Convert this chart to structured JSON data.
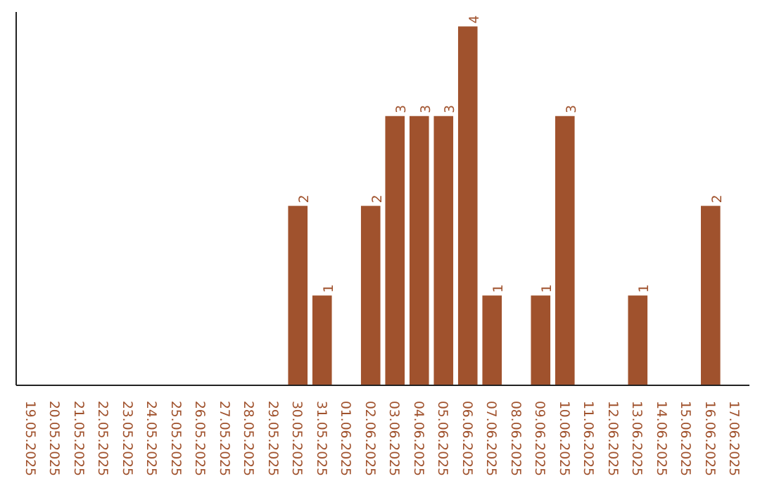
{
  "chart_data": {
    "type": "bar",
    "categories": [
      "19.05.2025",
      "20.05.2025",
      "21.05.2025",
      "22.05.2025",
      "23.05.2025",
      "24.05.2025",
      "25.05.2025",
      "26.05.2025",
      "27.05.2025",
      "28.05.2025",
      "29.05.2025",
      "30.05.2025",
      "31.05.2025",
      "01.06.2025",
      "02.06.2025",
      "03.06.2025",
      "04.06.2025",
      "05.06.2025",
      "06.06.2025",
      "07.06.2025",
      "08.06.2025",
      "09.06.2025",
      "10.06.2025",
      "11.06.2025",
      "12.06.2025",
      "13.06.2025",
      "14.06.2025",
      "15.06.2025",
      "16.06.2025",
      "17.06.2025"
    ],
    "values": [
      0,
      0,
      0,
      0,
      0,
      0,
      0,
      0,
      0,
      0,
      0,
      2,
      1,
      0,
      2,
      3,
      3,
      3,
      4,
      1,
      0,
      1,
      3,
      0,
      0,
      1,
      0,
      0,
      2,
      0
    ],
    "value_labels": [
      null,
      null,
      null,
      null,
      null,
      null,
      null,
      null,
      null,
      null,
      null,
      "2",
      "1",
      null,
      "2",
      "3",
      "3",
      "3",
      "4",
      "1",
      null,
      "1",
      "3",
      null,
      null,
      "1",
      null,
      null,
      "2",
      null
    ],
    "color": "#a0522d",
    "tick_labels": "x",
    "grid": false
  }
}
